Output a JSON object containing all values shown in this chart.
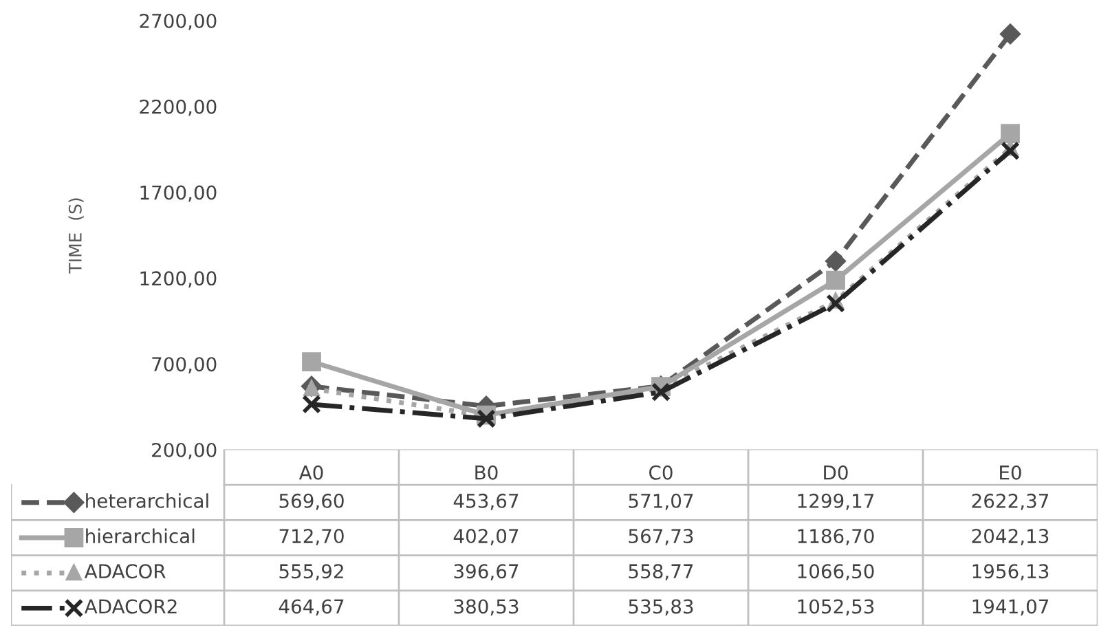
{
  "chart_data": {
    "type": "line",
    "ylabel": "TIME  (S)",
    "categories": [
      "A0",
      "B0",
      "C0",
      "D0",
      "E0"
    ],
    "ylim": [
      200,
      2700
    ],
    "yticks": [
      {
        "value": 200,
        "label": "200,00"
      },
      {
        "value": 700,
        "label": "700,00"
      },
      {
        "value": 1200,
        "label": "1200,00"
      },
      {
        "value": 1700,
        "label": "1700,00"
      },
      {
        "value": 2200,
        "label": "2200,00"
      },
      {
        "value": 2700,
        "label": "2700,00"
      }
    ],
    "grid": false,
    "legend": "bottom",
    "series": [
      {
        "name": "heterarchical",
        "color": "#595959",
        "marker": "diamond",
        "line_style": "dashed",
        "values": [
          569.6,
          453.67,
          571.07,
          1299.17,
          2622.37
        ],
        "value_labels": [
          "569,60",
          "453,67",
          "571,07",
          "1299,17",
          "2622,37"
        ]
      },
      {
        "name": "hierarchical",
        "color": "#a6a6a6",
        "marker": "square",
        "line_style": "solid",
        "values": [
          712.7,
          402.07,
          567.73,
          1186.7,
          2042.13
        ],
        "value_labels": [
          "712,70",
          "402,07",
          "567,73",
          "1186,70",
          "2042,13"
        ]
      },
      {
        "name": "ADACOR",
        "color": "#a6a6a6",
        "marker": "triangle",
        "line_style": "dotted",
        "values": [
          555.92,
          396.67,
          558.77,
          1066.5,
          1956.13
        ],
        "value_labels": [
          "555,92",
          "396,67",
          "558,77",
          "1066,50",
          "1956,13"
        ]
      },
      {
        "name": "ADACOR2",
        "color": "#262626",
        "marker": "cross",
        "line_style": "dashdot",
        "values": [
          464.67,
          380.53,
          535.83,
          1052.53,
          1941.07
        ],
        "value_labels": [
          "464,67",
          "380,53",
          "535,83",
          "1052,53",
          "1941,07"
        ]
      }
    ]
  }
}
